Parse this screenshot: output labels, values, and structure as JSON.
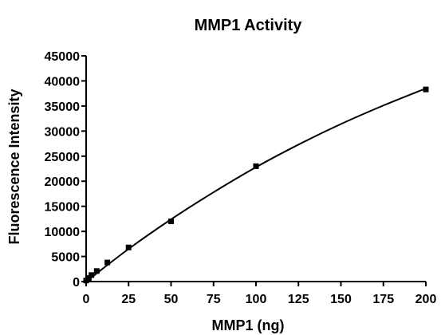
{
  "chart_data": {
    "type": "scatter",
    "title": "MMP1 Activity",
    "xlabel": "MMP1 (ng)",
    "ylabel": "Fluorescence Intensity",
    "xlim": [
      0,
      200
    ],
    "ylim": [
      0,
      45000
    ],
    "x_ticks": [
      0,
      25,
      50,
      75,
      100,
      125,
      150,
      175,
      200
    ],
    "y_ticks": [
      0,
      5000,
      10000,
      15000,
      20000,
      25000,
      30000,
      35000,
      40000,
      45000
    ],
    "grid": false,
    "legend": "none",
    "series": [
      {
        "points": [
          {
            "x": 0,
            "y": 200
          },
          {
            "x": 1.56,
            "y": 700
          },
          {
            "x": 3.13,
            "y": 1300
          },
          {
            "x": 6.25,
            "y": 2100
          },
          {
            "x": 12.5,
            "y": 3800
          },
          {
            "x": 25,
            "y": 6800
          },
          {
            "x": 50,
            "y": 12000
          },
          {
            "x": 100,
            "y": 23000
          },
          {
            "x": 200,
            "y": 38300
          }
        ],
        "fit_curve": [
          {
            "x": 0,
            "y": 0
          },
          {
            "x": 25,
            "y": 6500
          },
          {
            "x": 50,
            "y": 12400
          },
          {
            "x": 75,
            "y": 17800
          },
          {
            "x": 100,
            "y": 22800
          },
          {
            "x": 125,
            "y": 27300
          },
          {
            "x": 150,
            "y": 31400
          },
          {
            "x": 175,
            "y": 35100
          },
          {
            "x": 200,
            "y": 38500
          }
        ]
      }
    ]
  }
}
